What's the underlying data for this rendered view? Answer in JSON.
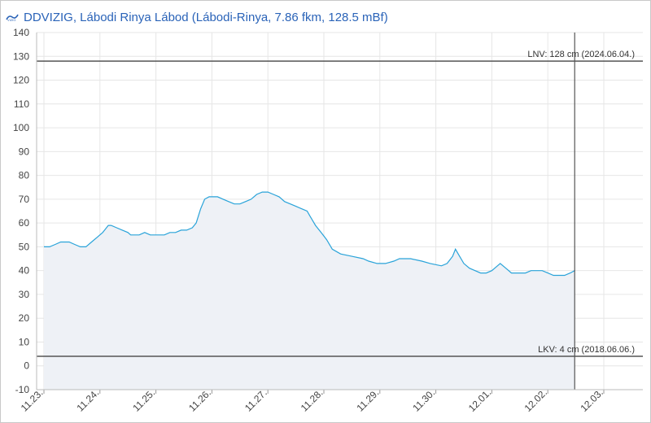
{
  "header": {
    "logo_text": "VIZIG",
    "title": "DDVIZIG, Lábodi Rinya Lábod (Lábodi-Rinya, 7.86 fkm, 128.5 mBf)"
  },
  "colors": {
    "series_line": "#29a3d9",
    "series_fill": "#eef1f6",
    "grid": "#e6e6e6",
    "reference_line": "#555555"
  },
  "chart_data": {
    "type": "area",
    "title": "DDVIZIG, Lábodi Rinya Lábod (Lábodi-Rinya, 7.86 fkm, 128.5 mBf)",
    "xlabel": "",
    "ylabel": "",
    "ylim": [
      -10,
      140
    ],
    "y_ticks": [
      -10,
      0,
      10,
      20,
      30,
      40,
      50,
      60,
      70,
      80,
      90,
      100,
      110,
      120,
      130,
      140
    ],
    "x_ticks": [
      "11.23.",
      "11.24.",
      "11.25.",
      "11.26.",
      "11.27.",
      "11.28.",
      "11.29.",
      "11.30.",
      "12.01.",
      "12.02.",
      "12.03."
    ],
    "grid": true,
    "reference_lines": [
      {
        "label": "LNV: 128 cm (2024.06.04.)",
        "value": 128
      },
      {
        "label": "LKV: 4 cm (2018.06.06.)",
        "value": 4
      }
    ],
    "series": [
      {
        "points": [
          [
            0.0,
            50
          ],
          [
            0.1,
            50
          ],
          [
            0.2,
            51
          ],
          [
            0.3,
            52
          ],
          [
            0.45,
            52
          ],
          [
            0.55,
            51
          ],
          [
            0.65,
            50
          ],
          [
            0.75,
            50
          ],
          [
            0.85,
            52
          ],
          [
            0.95,
            54
          ],
          [
            1.05,
            56
          ],
          [
            1.15,
            59
          ],
          [
            1.2,
            59
          ],
          [
            1.3,
            58
          ],
          [
            1.4,
            57
          ],
          [
            1.5,
            56
          ],
          [
            1.55,
            55
          ],
          [
            1.7,
            55
          ],
          [
            1.8,
            56
          ],
          [
            1.9,
            55
          ],
          [
            2.0,
            55
          ],
          [
            2.15,
            55
          ],
          [
            2.25,
            56
          ],
          [
            2.35,
            56
          ],
          [
            2.45,
            57
          ],
          [
            2.55,
            57
          ],
          [
            2.65,
            58
          ],
          [
            2.72,
            60
          ],
          [
            2.8,
            66
          ],
          [
            2.87,
            70
          ],
          [
            2.95,
            71
          ],
          [
            3.1,
            71
          ],
          [
            3.2,
            70
          ],
          [
            3.3,
            69
          ],
          [
            3.4,
            68
          ],
          [
            3.5,
            68
          ],
          [
            3.6,
            69
          ],
          [
            3.7,
            70
          ],
          [
            3.8,
            72
          ],
          [
            3.9,
            73
          ],
          [
            4.0,
            73
          ],
          [
            4.1,
            72
          ],
          [
            4.2,
            71
          ],
          [
            4.3,
            69
          ],
          [
            4.4,
            68
          ],
          [
            4.5,
            67
          ],
          [
            4.6,
            66
          ],
          [
            4.7,
            65
          ],
          [
            4.75,
            63
          ],
          [
            4.85,
            59
          ],
          [
            4.95,
            56
          ],
          [
            5.05,
            53
          ],
          [
            5.15,
            49
          ],
          [
            5.3,
            47
          ],
          [
            5.5,
            46
          ],
          [
            5.7,
            45
          ],
          [
            5.8,
            44
          ],
          [
            5.95,
            43
          ],
          [
            6.1,
            43
          ],
          [
            6.25,
            44
          ],
          [
            6.35,
            45
          ],
          [
            6.55,
            45
          ],
          [
            6.75,
            44
          ],
          [
            6.9,
            43
          ],
          [
            7.1,
            42
          ],
          [
            7.2,
            43
          ],
          [
            7.3,
            46
          ],
          [
            7.35,
            49
          ],
          [
            7.4,
            47
          ],
          [
            7.5,
            43
          ],
          [
            7.6,
            41
          ],
          [
            7.7,
            40
          ],
          [
            7.8,
            39
          ],
          [
            7.9,
            39
          ],
          [
            8.0,
            40
          ],
          [
            8.1,
            42
          ],
          [
            8.15,
            43
          ],
          [
            8.25,
            41
          ],
          [
            8.35,
            39
          ],
          [
            8.5,
            39
          ],
          [
            8.6,
            39
          ],
          [
            8.7,
            40
          ],
          [
            8.8,
            40
          ],
          [
            8.9,
            40
          ],
          [
            9.0,
            39
          ],
          [
            9.1,
            38
          ],
          [
            9.2,
            38
          ],
          [
            9.3,
            38
          ],
          [
            9.4,
            39
          ],
          [
            9.48,
            40
          ]
        ]
      }
    ]
  }
}
